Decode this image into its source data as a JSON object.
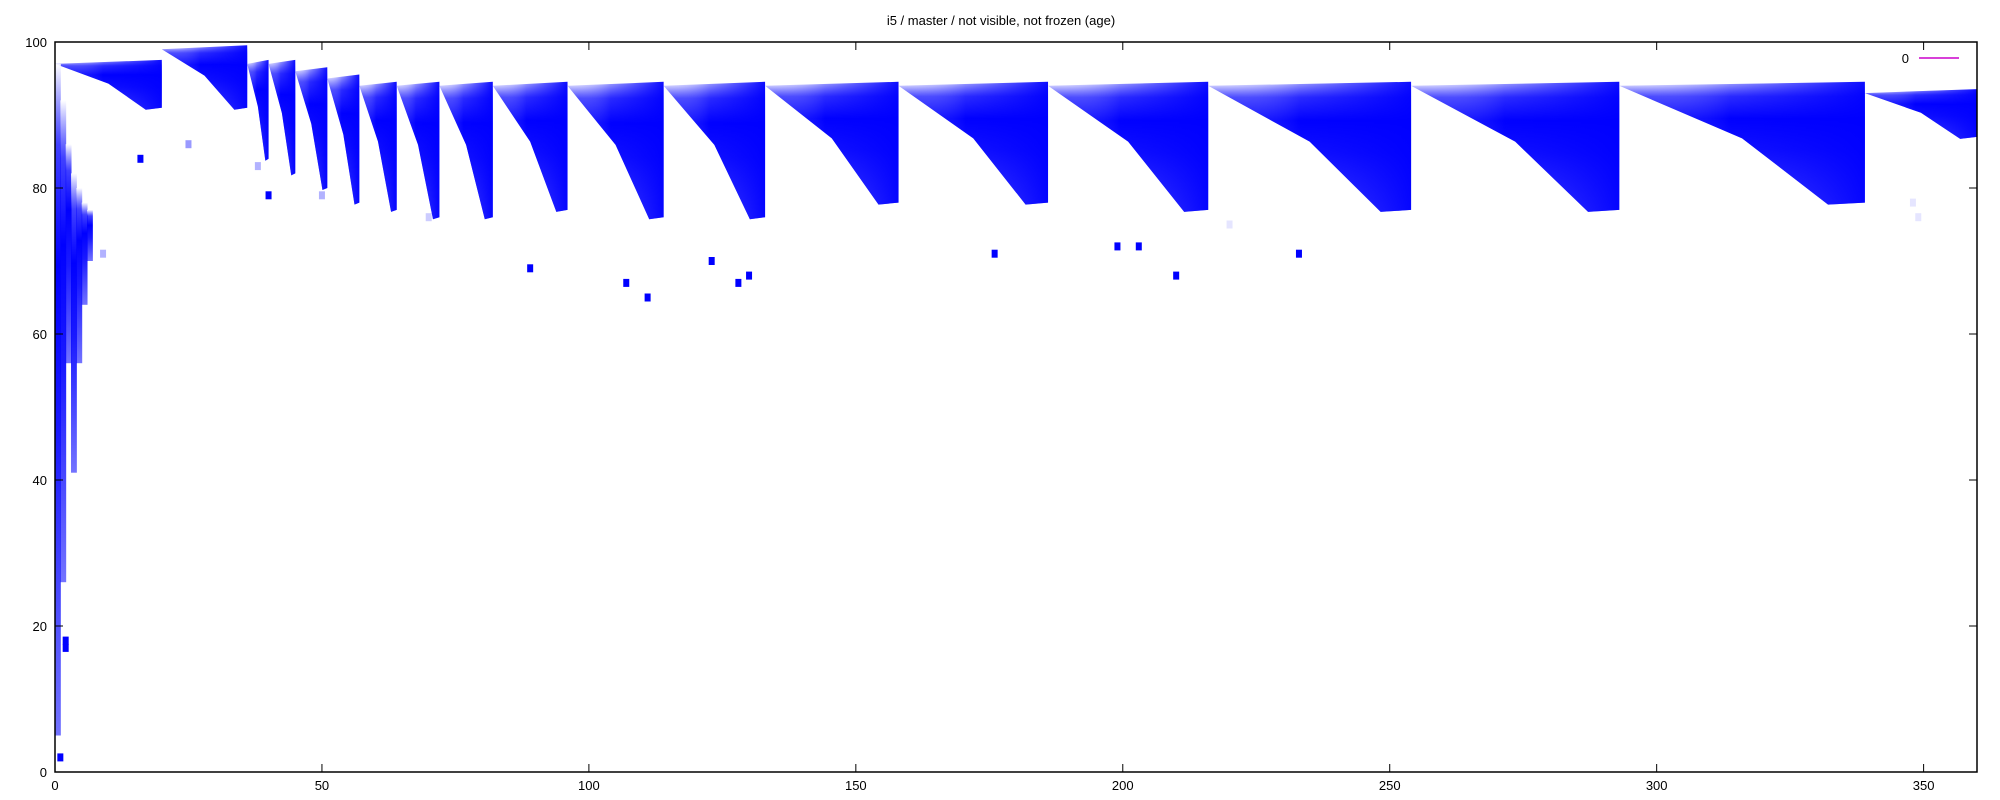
{
  "chart_data": {
    "type": "heatmap",
    "title": "i5 / master / not visible, not frozen (age)",
    "xlabel": "",
    "ylabel": "",
    "xlim": [
      0,
      360
    ],
    "ylim": [
      0,
      100
    ],
    "xticks": [
      0,
      50,
      100,
      150,
      200,
      250,
      300,
      350
    ],
    "yticks": [
      0,
      20,
      40,
      60,
      80,
      100
    ],
    "grid": false,
    "legend": {
      "position": "top-right",
      "entries": [
        {
          "label": "0",
          "color": "#cc00cc"
        }
      ]
    },
    "colors": {
      "high": "#0000ff",
      "low": "#ffffff",
      "legend_line": "#cc00cc"
    },
    "bands": [
      {
        "x": [
          0,
          20
        ],
        "y_top": 97,
        "y_bottom": 91
      },
      {
        "x": [
          20,
          36
        ],
        "y_top": 99,
        "y_bottom": 91
      },
      {
        "x": [
          36,
          40
        ],
        "y_top": 97,
        "y_bottom": 84
      },
      {
        "x": [
          40,
          45
        ],
        "y_top": 97,
        "y_bottom": 82
      },
      {
        "x": [
          45,
          51
        ],
        "y_top": 96,
        "y_bottom": 80
      },
      {
        "x": [
          51,
          57
        ],
        "y_top": 95,
        "y_bottom": 78
      },
      {
        "x": [
          57,
          64
        ],
        "y_top": 94,
        "y_bottom": 77
      },
      {
        "x": [
          64,
          72
        ],
        "y_top": 94,
        "y_bottom": 76
      },
      {
        "x": [
          72,
          82
        ],
        "y_top": 94,
        "y_bottom": 76
      },
      {
        "x": [
          82,
          96
        ],
        "y_top": 94,
        "y_bottom": 77
      },
      {
        "x": [
          96,
          114
        ],
        "y_top": 94,
        "y_bottom": 76
      },
      {
        "x": [
          114,
          133
        ],
        "y_top": 94,
        "y_bottom": 76
      },
      {
        "x": [
          133,
          158
        ],
        "y_top": 94,
        "y_bottom": 78
      },
      {
        "x": [
          158,
          186
        ],
        "y_top": 94,
        "y_bottom": 78
      },
      {
        "x": [
          186,
          216
        ],
        "y_top": 94,
        "y_bottom": 77
      },
      {
        "x": [
          216,
          254
        ],
        "y_top": 94,
        "y_bottom": 77
      },
      {
        "x": [
          254,
          293
        ],
        "y_top": 94,
        "y_bottom": 77
      },
      {
        "x": [
          293,
          339
        ],
        "y_top": 94,
        "y_bottom": 78
      },
      {
        "x": [
          339,
          360
        ],
        "y_top": 93,
        "y_bottom": 87
      }
    ],
    "early_column": [
      {
        "x": 0,
        "y_top": 97,
        "y_bottom": 5
      },
      {
        "x": 1,
        "y_top": 92,
        "y_bottom": 26
      },
      {
        "x": 2,
        "y_top": 86,
        "y_bottom": 56
      },
      {
        "x": 3,
        "y_top": 82,
        "y_bottom": 41
      },
      {
        "x": 4,
        "y_top": 80,
        "y_bottom": 56
      },
      {
        "x": 5,
        "y_top": 78,
        "y_bottom": 64
      },
      {
        "x": 6,
        "y_top": 77,
        "y_bottom": 70
      }
    ],
    "points": [
      {
        "x": 1,
        "y": 2,
        "value": 1
      },
      {
        "x": 2,
        "y": 17,
        "value": 1
      },
      {
        "x": 2,
        "y": 18,
        "value": 1
      },
      {
        "x": 9,
        "y": 71,
        "value": 0.3
      },
      {
        "x": 16,
        "y": 84,
        "value": 1
      },
      {
        "x": 25,
        "y": 86,
        "value": 0.4
      },
      {
        "x": 38,
        "y": 83,
        "value": 0.3
      },
      {
        "x": 40,
        "y": 79,
        "value": 1
      },
      {
        "x": 50,
        "y": 79,
        "value": 0.3
      },
      {
        "x": 70,
        "y": 76,
        "value": 0.2
      },
      {
        "x": 89,
        "y": 69,
        "value": 1
      },
      {
        "x": 107,
        "y": 67,
        "value": 1
      },
      {
        "x": 111,
        "y": 65,
        "value": 1
      },
      {
        "x": 123,
        "y": 70,
        "value": 1
      },
      {
        "x": 128,
        "y": 67,
        "value": 1
      },
      {
        "x": 130,
        "y": 68,
        "value": 1
      },
      {
        "x": 176,
        "y": 71,
        "value": 1
      },
      {
        "x": 199,
        "y": 72,
        "value": 1
      },
      {
        "x": 203,
        "y": 72,
        "value": 1
      },
      {
        "x": 210,
        "y": 68,
        "value": 1
      },
      {
        "x": 220,
        "y": 75,
        "value": 0.1
      },
      {
        "x": 233,
        "y": 71,
        "value": 1
      },
      {
        "x": 348,
        "y": 78,
        "value": 0.1
      },
      {
        "x": 349,
        "y": 76,
        "value": 0.1
      }
    ]
  }
}
